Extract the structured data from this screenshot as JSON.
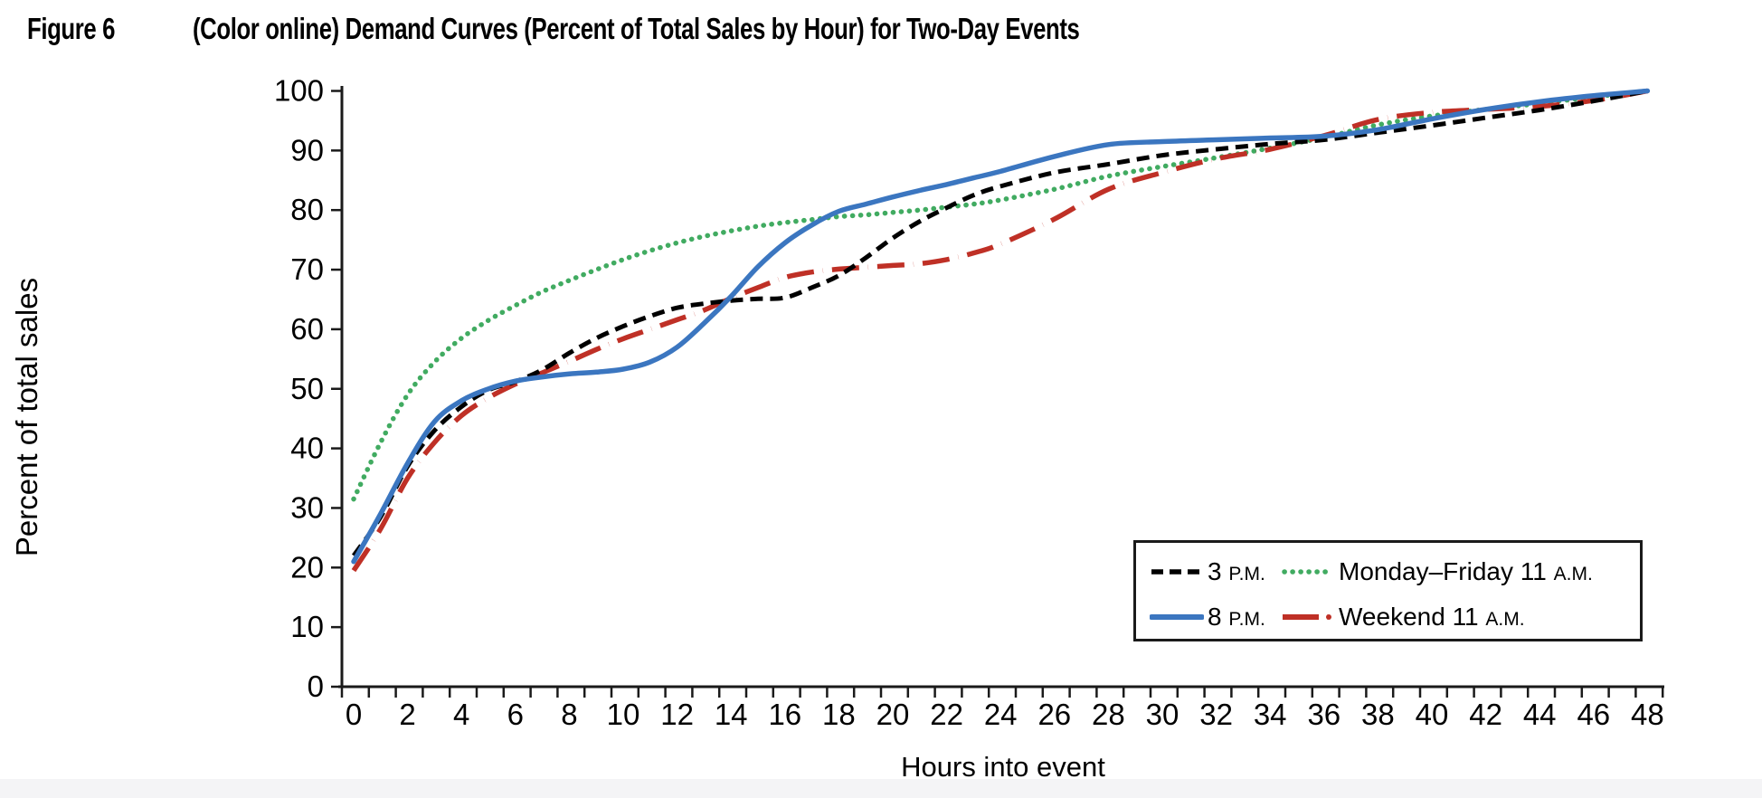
{
  "figure": {
    "label": "Figure 6",
    "title": "(Color online) Demand Curves (Percent of Total Sales by Hour) for Two-Day Events"
  },
  "axes": {
    "x_label": "Hours into event",
    "y_label": "Percent of total sales"
  },
  "legend": {
    "position": "inside-bottom-right",
    "items": [
      {
        "series": "3pm",
        "label": "3",
        "suffix": "P.M."
      },
      {
        "series": "monfri11am",
        "label": "Monday–Friday 11",
        "suffix": "A.M."
      },
      {
        "series": "8pm",
        "label": "8",
        "suffix": "P.M."
      },
      {
        "series": "weekend11am",
        "label": "Weekend 11",
        "suffix": "A.M."
      }
    ]
  },
  "colors": {
    "black": "#000000",
    "blue": "#3b76c0",
    "green": "#41ab61",
    "red": "#bf3026",
    "axis": "#1a1a1a"
  },
  "chart_data": {
    "type": "line",
    "title": "Demand Curves (Percent of Total Sales by Hour) for Two-Day Events",
    "xlabel": "Hours into event",
    "ylabel": "Percent of total sales",
    "xlim": [
      0,
      48
    ],
    "ylim": [
      0,
      100
    ],
    "x_tick_label_step": 2,
    "x_minor_tick_step": 1,
    "y_tick_step": 10,
    "grid": false,
    "legend_position": "lower right inside",
    "x": [
      0,
      1,
      2,
      3,
      4,
      5,
      6,
      7,
      8,
      9,
      10,
      11,
      12,
      13,
      14,
      15,
      16,
      17,
      18,
      19,
      20,
      21,
      22,
      23,
      24,
      26,
      28,
      30,
      32,
      34,
      36,
      38,
      40,
      42,
      44,
      46,
      48
    ],
    "series": [
      {
        "id": "3pm",
        "name": "3 P.M.",
        "color": "#000000",
        "line_style": "dashed",
        "values": [
          22,
          28.5,
          37,
          43,
          47,
          49.8,
          51.2,
          53.2,
          56,
          58.5,
          60.5,
          62.2,
          63.6,
          64.3,
          64.8,
          65.1,
          65.3,
          67,
          69,
          72,
          75.3,
          78.1,
          80.4,
          82.5,
          84,
          86.3,
          87.7,
          89.2,
          90.2,
          91.1,
          91.8,
          93,
          94.2,
          95.5,
          96.8,
          98.3,
          100
        ]
      },
      {
        "id": "8pm",
        "name": "8 P.M.",
        "color": "#3b76c0",
        "line_style": "solid",
        "values": [
          21,
          29,
          37.5,
          44.5,
          48,
          50,
          51.3,
          52,
          52.5,
          52.8,
          53.3,
          54.5,
          57,
          61,
          65.5,
          70.5,
          74.5,
          77.5,
          79.8,
          81,
          82.2,
          83.3,
          84.3,
          85.4,
          86.5,
          89,
          91,
          91.5,
          91.8,
          92.1,
          92.4,
          93.5,
          95.3,
          96.9,
          98.2,
          99.2,
          100
        ]
      },
      {
        "id": "monfri11am",
        "name": "Monday–Friday 11 A.M.",
        "color": "#41ab61",
        "line_style": "dotted",
        "values": [
          31.5,
          41,
          49,
          54.5,
          58.5,
          61.5,
          64,
          66.3,
          68.2,
          70,
          71.7,
          73.2,
          74.5,
          75.6,
          76.5,
          77.3,
          77.9,
          78.4,
          78.9,
          79.2,
          79.6,
          80,
          80.5,
          81,
          81.7,
          83.5,
          85.7,
          87.3,
          88.8,
          90.4,
          92.2,
          94.3,
          95.8,
          96.9,
          97.9,
          99,
          100
        ]
      },
      {
        "id": "weekend11am",
        "name": "Weekend 11 A.M.",
        "color": "#bf3026",
        "line_style": "long-dash-dot",
        "values": [
          19.5,
          26.5,
          35,
          41,
          45.5,
          48.5,
          50.8,
          52.7,
          54.6,
          56.6,
          58.4,
          60,
          61.6,
          63.2,
          65.2,
          67,
          68.7,
          69.6,
          70.1,
          70.4,
          70.7,
          71,
          71.7,
          72.8,
          74.3,
          78.5,
          83.5,
          86.3,
          88.6,
          90.2,
          92.5,
          95.2,
          96.4,
          96.9,
          97.4,
          98.4,
          100
        ]
      }
    ]
  }
}
